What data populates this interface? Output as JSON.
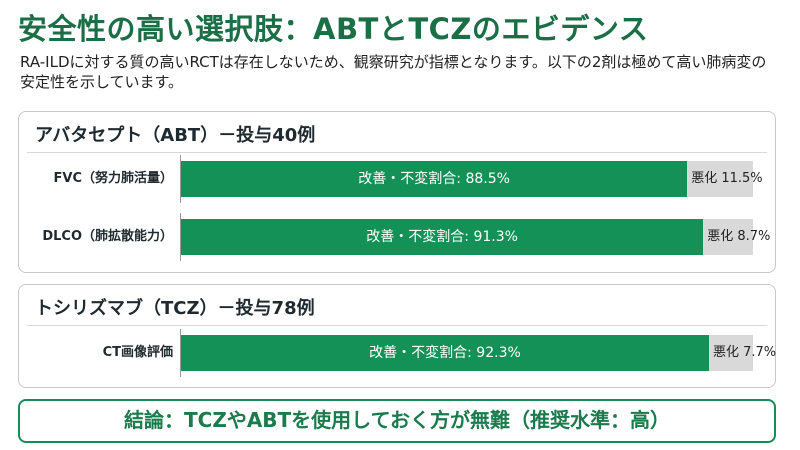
{
  "title": "安全性の高い選択肢：ABTとTCZのエビデンス",
  "intro": "RA-ILDに対する質の高いRCTは存在しないため、観察研究が指標となります。以下の2剤は極めて高い肺病変の安定性を示しています。",
  "cards": [
    {
      "title": "アバタセプト（ABT）－投与40例",
      "rows": [
        {
          "label": "FVC（努力肺活量）",
          "improved_label": "改善・不変割合: 88.5%",
          "worsened_label": "悪化 11.5%",
          "improved_pct": 88.5
        },
        {
          "label": "DLCO（肺拡散能力）",
          "improved_label": "改善・不変割合: 91.3%",
          "worsened_label": "悪化 8.7%",
          "improved_pct": 91.3
        }
      ]
    },
    {
      "title": "トシリズマブ（TCZ）－投与78例",
      "rows": [
        {
          "label": "CT画像評価",
          "improved_label": "改善・不変割合: 92.3%",
          "worsened_label": "悪化 7.7%",
          "improved_pct": 92.3
        }
      ]
    }
  ],
  "conclusion": "結論：TCZやABTを使用しておく方が無難（推奨水準：高）",
  "colors": {
    "accent": "#139157",
    "title": "#1a6f47",
    "track": "#d9d9d9",
    "border": "#c8c8c8"
  }
}
